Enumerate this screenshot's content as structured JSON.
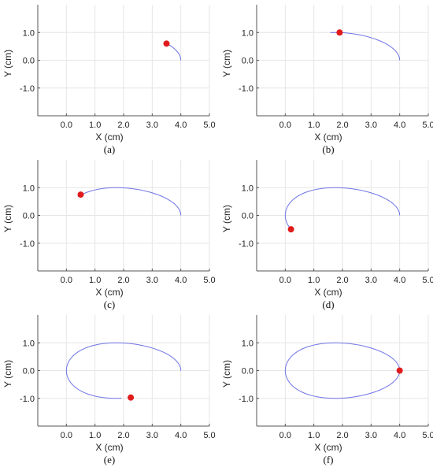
{
  "figure": {
    "panel_labels": [
      "(a)",
      "(b)",
      "(c)",
      "(d)",
      "(e)",
      "(f)"
    ]
  },
  "chart_data": [
    {
      "type": "line",
      "panel": "(a)",
      "xlabel": "X (cm)",
      "ylabel": "Y (cm)",
      "xlim": [
        -1,
        5
      ],
      "ylim": [
        -2,
        2
      ],
      "xticks": [
        0,
        1,
        2,
        3,
        4,
        5
      ],
      "xtick_labels": [
        "0.0",
        "1.0",
        "2.0",
        "3.0",
        "4.0",
        "5.0"
      ],
      "yticks": [
        1,
        0,
        -1
      ],
      "ytick_labels": [
        "1.0",
        "0.0",
        "-1.0"
      ],
      "grid": true,
      "line_color": "#6f73e6",
      "marker_color": "#e01b1b",
      "t_start_deg": 0,
      "t_end_deg": 35,
      "marker": [
        3.5,
        0.6
      ]
    },
    {
      "type": "line",
      "panel": "(b)",
      "xlabel": "X (cm)",
      "ylabel": "Y (cm)",
      "xlim": [
        -1,
        5
      ],
      "ylim": [
        -2,
        2
      ],
      "xticks": [
        0,
        1,
        2,
        3,
        4,
        5
      ],
      "xtick_labels": [
        "0.0",
        "1.0",
        "2.0",
        "3.0",
        "4.0",
        "5.0"
      ],
      "yticks": [
        1,
        0,
        -1
      ],
      "ytick_labels": [
        "1.0",
        "0.0",
        "-1.0"
      ],
      "grid": true,
      "line_color": "#6f73e6",
      "marker_color": "#e01b1b",
      "t_start_deg": 0,
      "t_end_deg": 95,
      "marker": [
        1.9,
        1.0
      ]
    },
    {
      "type": "line",
      "panel": "(c)",
      "xlabel": "X (cm)",
      "ylabel": "Y (cm)",
      "xlim": [
        -1,
        5
      ],
      "ylim": [
        -2,
        2
      ],
      "xticks": [
        0,
        1,
        2,
        3,
        4,
        5
      ],
      "xtick_labels": [
        "0.0",
        "1.0",
        "2.0",
        "3.0",
        "4.0",
        "5.0"
      ],
      "yticks": [
        1,
        0,
        -1
      ],
      "ytick_labels": [
        "1.0",
        "0.0",
        "-1.0"
      ],
      "grid": true,
      "line_color": "#6f73e6",
      "marker_color": "#e01b1b",
      "t_start_deg": 0,
      "t_end_deg": 138,
      "marker": [
        0.5,
        0.75
      ]
    },
    {
      "type": "line",
      "panel": "(d)",
      "xlabel": "X (cm)",
      "ylabel": "Y (cm)",
      "xlim": [
        -1,
        5
      ],
      "ylim": [
        -2,
        2
      ],
      "xticks": [
        0,
        1,
        2,
        3,
        4,
        5
      ],
      "xtick_labels": [
        "0.0",
        "1.0",
        "2.0",
        "3.0",
        "4.0",
        "5.0"
      ],
      "yticks": [
        1,
        0,
        -1
      ],
      "ytick_labels": [
        "1.0",
        "0.0",
        "-1.0"
      ],
      "grid": true,
      "line_color": "#6f73e6",
      "marker_color": "#e01b1b",
      "t_start_deg": 0,
      "t_end_deg": 210,
      "marker": [
        0.2,
        -0.5
      ]
    },
    {
      "type": "line",
      "panel": "(e)",
      "xlabel": "X (cm)",
      "ylabel": "Y (cm)",
      "xlim": [
        -1,
        5
      ],
      "ylim": [
        -2,
        2
      ],
      "xticks": [
        0,
        1,
        2,
        3,
        4,
        5
      ],
      "xtick_labels": [
        "0.0",
        "1.0",
        "2.0",
        "3.0",
        "4.0",
        "5.0"
      ],
      "yticks": [
        1,
        0,
        -1
      ],
      "ytick_labels": [
        "1.0",
        "0.0",
        "-1.0"
      ],
      "grid": true,
      "line_color": "#6f73e6",
      "marker_color": "#e01b1b",
      "t_start_deg": 0,
      "t_end_deg": 275,
      "marker": [
        2.25,
        -0.97
      ]
    },
    {
      "type": "line",
      "panel": "(f)",
      "xlabel": "X (cm)",
      "ylabel": "Y (cm)",
      "xlim": [
        -1,
        5
      ],
      "ylim": [
        -2,
        2
      ],
      "xticks": [
        0,
        1,
        2,
        3,
        4,
        5
      ],
      "xtick_labels": [
        "0.0",
        "1.0",
        "2.0",
        "3.0",
        "4.0",
        "5.0"
      ],
      "yticks": [
        1,
        0,
        -1
      ],
      "ytick_labels": [
        "1.0",
        "0.0",
        "-1.0"
      ],
      "grid": true,
      "line_color": "#6f73e6",
      "marker_color": "#e01b1b",
      "t_start_deg": 0,
      "t_end_deg": 360,
      "marker": [
        4.0,
        0.0
      ]
    }
  ]
}
